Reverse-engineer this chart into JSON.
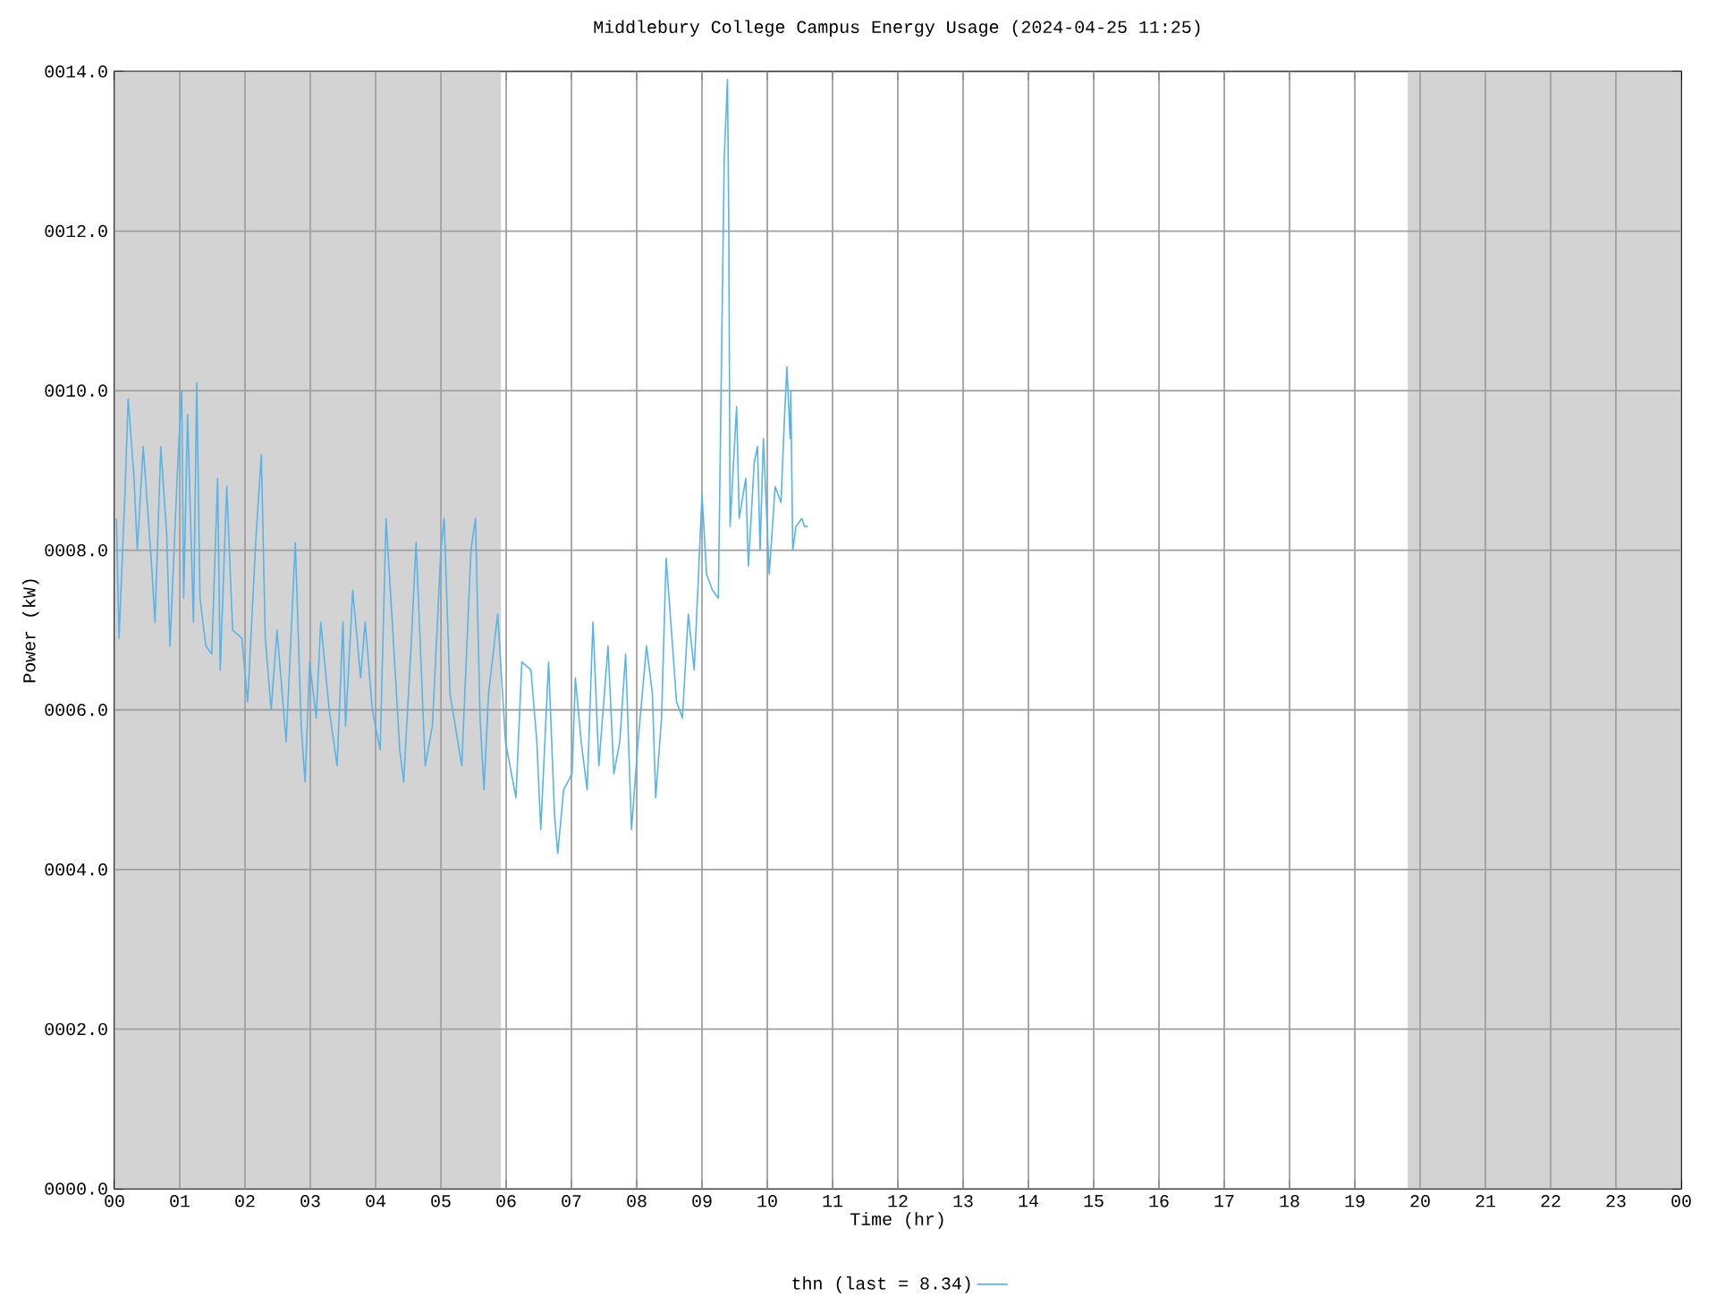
{
  "chart_data": {
    "type": "line",
    "title": "Middlebury College Campus Energy Usage (2024-04-25 11:25)",
    "xlabel": "Time (hr)",
    "ylabel": "Power (kW)",
    "xlim": [
      0,
      24
    ],
    "ylim": [
      0,
      14
    ],
    "xticks": [
      {
        "value": 0,
        "label": "00"
      },
      {
        "value": 1,
        "label": "01"
      },
      {
        "value": 2,
        "label": "02"
      },
      {
        "value": 3,
        "label": "03"
      },
      {
        "value": 4,
        "label": "04"
      },
      {
        "value": 5,
        "label": "05"
      },
      {
        "value": 6,
        "label": "06"
      },
      {
        "value": 7,
        "label": "07"
      },
      {
        "value": 8,
        "label": "08"
      },
      {
        "value": 9,
        "label": "09"
      },
      {
        "value": 10,
        "label": "10"
      },
      {
        "value": 11,
        "label": "11"
      },
      {
        "value": 12,
        "label": "12"
      },
      {
        "value": 13,
        "label": "13"
      },
      {
        "value": 14,
        "label": "14"
      },
      {
        "value": 15,
        "label": "15"
      },
      {
        "value": 16,
        "label": "16"
      },
      {
        "value": 17,
        "label": "17"
      },
      {
        "value": 18,
        "label": "18"
      },
      {
        "value": 19,
        "label": "19"
      },
      {
        "value": 20,
        "label": "20"
      },
      {
        "value": 21,
        "label": "21"
      },
      {
        "value": 22,
        "label": "22"
      },
      {
        "value": 23,
        "label": "23"
      },
      {
        "value": 24,
        "label": "00"
      }
    ],
    "yticks": [
      {
        "value": 0,
        "label": "0000.0"
      },
      {
        "value": 2,
        "label": "0002.0"
      },
      {
        "value": 4,
        "label": "0004.0"
      },
      {
        "value": 6,
        "label": "0006.0"
      },
      {
        "value": 8,
        "label": "0008.0"
      },
      {
        "value": 10,
        "label": "0010.0"
      },
      {
        "value": 12,
        "label": "0012.0"
      },
      {
        "value": 14,
        "label": "0014.0"
      }
    ],
    "grid": true,
    "legend": "bottom",
    "bands": [
      {
        "axis": "x",
        "from": 0,
        "to": 5.92,
        "color": "#d3d3d3"
      },
      {
        "axis": "x",
        "from": 19.81,
        "to": 24,
        "color": "#d3d3d3"
      }
    ],
    "series": [
      {
        "name": "thn (last = 8.34)",
        "color": "#56b4e9",
        "x": [
          0.03,
          0.07,
          0.16,
          0.21,
          0.3,
          0.35,
          0.44,
          0.57,
          0.62,
          0.71,
          0.8,
          0.85,
          0.97,
          1.03,
          1.06,
          1.12,
          1.21,
          1.26,
          1.31,
          1.4,
          1.49,
          1.58,
          1.62,
          1.72,
          1.81,
          1.95,
          2.04,
          2.17,
          2.25,
          2.31,
          2.4,
          2.49,
          2.63,
          2.77,
          2.86,
          2.92,
          2.99,
          3.09,
          3.16,
          3.29,
          3.41,
          3.5,
          3.54,
          3.65,
          3.77,
          3.84,
          3.95,
          4.07,
          4.16,
          4.27,
          4.37,
          4.43,
          4.55,
          4.62,
          4.76,
          4.87,
          5.0,
          5.05,
          5.14,
          5.32,
          5.46,
          5.53,
          5.6,
          5.66,
          5.73,
          5.87,
          5.99,
          6.15,
          6.24,
          6.38,
          6.47,
          6.53,
          6.65,
          6.74,
          6.79,
          6.88,
          7.01,
          7.06,
          7.15,
          7.24,
          7.33,
          7.42,
          7.56,
          7.65,
          7.74,
          7.83,
          7.92,
          8.02,
          8.15,
          8.24,
          8.29,
          8.38,
          8.45,
          8.54,
          8.61,
          8.7,
          8.79,
          8.88,
          8.93,
          9.0,
          9.07,
          9.16,
          9.25,
          9.34,
          9.39,
          9.41,
          9.43,
          9.53,
          9.57,
          9.67,
          9.71,
          9.8,
          9.85,
          9.89,
          9.94,
          10.03,
          10.12,
          10.21,
          10.26,
          10.3,
          10.35,
          10.36,
          10.39,
          10.44,
          10.53,
          10.57,
          10.62
        ],
        "values": [
          8.4,
          6.9,
          8.7,
          9.9,
          8.9,
          8.0,
          9.3,
          7.8,
          7.1,
          9.3,
          8.2,
          6.8,
          9.1,
          10.0,
          7.4,
          9.7,
          7.1,
          10.1,
          7.4,
          6.8,
          6.7,
          8.9,
          6.5,
          8.8,
          7.0,
          6.9,
          6.1,
          8.2,
          9.2,
          6.9,
          6.0,
          7.0,
          5.6,
          8.1,
          5.8,
          5.1,
          6.6,
          5.9,
          7.1,
          6.0,
          5.3,
          7.1,
          5.8,
          7.5,
          6.4,
          7.1,
          6.0,
          5.5,
          8.4,
          6.9,
          5.5,
          5.1,
          6.9,
          8.1,
          5.3,
          5.8,
          8.0,
          8.4,
          6.2,
          5.3,
          8.0,
          8.4,
          5.9,
          5.0,
          6.2,
          7.2,
          5.6,
          4.9,
          6.6,
          6.5,
          5.6,
          4.5,
          6.6,
          4.7,
          4.2,
          5.0,
          5.2,
          6.4,
          5.6,
          5.0,
          7.1,
          5.3,
          6.8,
          5.2,
          5.6,
          6.7,
          4.5,
          5.6,
          6.8,
          6.2,
          4.9,
          5.9,
          7.9,
          6.9,
          6.1,
          5.9,
          7.2,
          6.5,
          7.4,
          8.7,
          7.7,
          7.5,
          7.4,
          12.9,
          13.9,
          12.1,
          8.3,
          9.8,
          8.4,
          8.9,
          7.8,
          9.1,
          9.3,
          8.0,
          9.4,
          7.7,
          8.8,
          8.6,
          9.6,
          10.3,
          9.4,
          10.0,
          8.0,
          8.3,
          8.4,
          8.3,
          8.3
        ]
      }
    ]
  }
}
